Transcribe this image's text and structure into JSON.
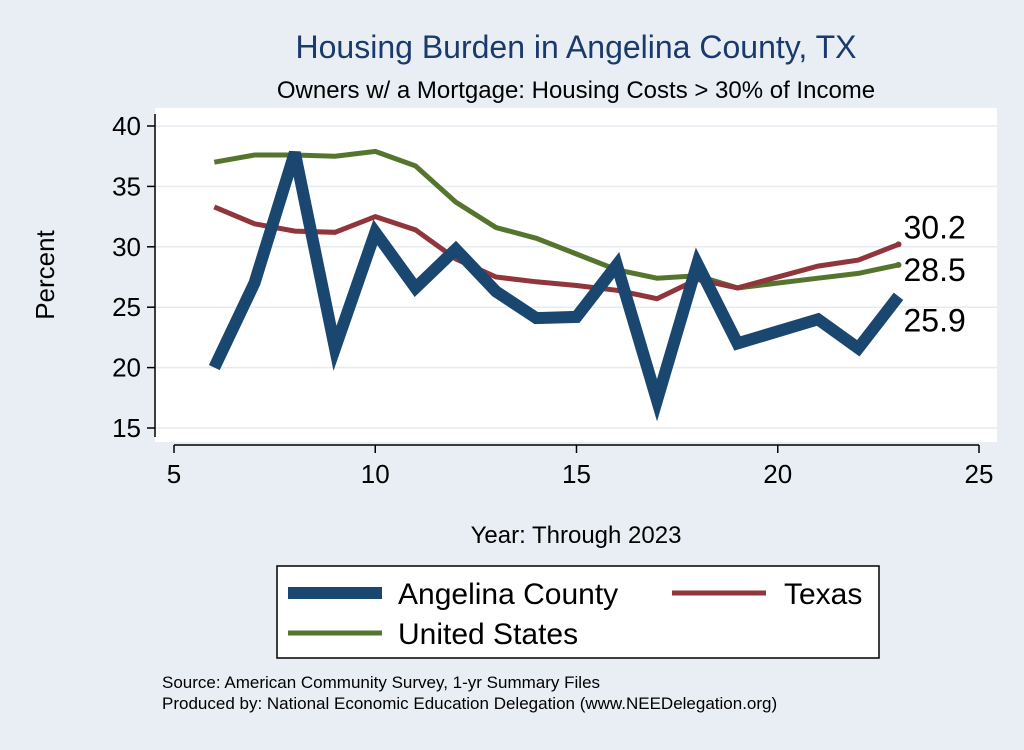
{
  "chart_data": {
    "type": "line",
    "title": "Housing Burden in Angelina County, TX",
    "subtitle": "Owners w/ a Mortgage: Housing Costs > 30% of Income",
    "xlabel": "Year: Through 2023",
    "ylabel": "Percent",
    "xlim": [
      5,
      25
    ],
    "ylim": [
      14.5,
      41
    ],
    "xticks": [
      5,
      10,
      15,
      20,
      25
    ],
    "yticks": [
      15,
      20,
      25,
      30,
      35,
      40
    ],
    "grid": true,
    "legend_position": "bottom",
    "series": [
      {
        "name": "Angelina County",
        "color": "#1a476f",
        "x": [
          6,
          7,
          8,
          9,
          10,
          11,
          12,
          13,
          14,
          15,
          16,
          17,
          18,
          19,
          21,
          22,
          23
        ],
        "values": [
          20.0,
          27.0,
          37.8,
          21.6,
          31.2,
          26.6,
          29.8,
          26.3,
          24.1,
          24.2,
          28.5,
          17.3,
          28.6,
          22.0,
          24.0,
          21.6,
          25.9
        ],
        "end_label": "25.9"
      },
      {
        "name": "Texas",
        "color": "#90353b",
        "x": [
          6,
          7,
          8,
          9,
          10,
          11,
          12,
          13,
          14,
          15,
          16,
          17,
          18,
          19,
          21,
          22,
          23
        ],
        "values": [
          33.3,
          31.9,
          31.3,
          31.2,
          32.5,
          31.4,
          29.0,
          27.5,
          27.1,
          26.8,
          26.4,
          25.7,
          27.3,
          26.6,
          28.4,
          28.9,
          30.2
        ],
        "end_label": "30.2"
      },
      {
        "name": "United States",
        "color": "#55752f",
        "x": [
          6,
          7,
          8,
          9,
          10,
          11,
          12,
          13,
          14,
          15,
          16,
          17,
          18,
          19,
          21,
          22,
          23
        ],
        "values": [
          37.0,
          37.6,
          37.6,
          37.5,
          37.9,
          36.7,
          33.7,
          31.6,
          30.7,
          29.4,
          28.1,
          27.4,
          27.6,
          26.6,
          27.4,
          27.8,
          28.5
        ],
        "end_label": "28.5"
      }
    ],
    "source_lines": [
      "Source: American Community Survey, 1-yr Summary Files",
      "Produced by: National Economic Education Delegation (www.NEEDelegation.org)"
    ]
  }
}
